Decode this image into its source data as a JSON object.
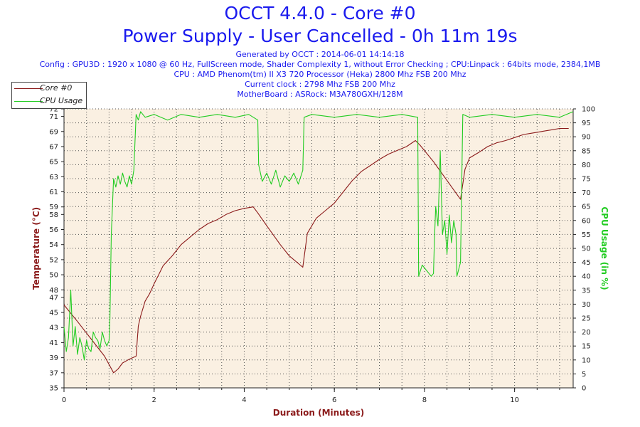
{
  "header": {
    "title": "OCCT 4.4.0 - Core #0",
    "subtitle": "Power Supply - User Cancelled - 0h 11m 19s",
    "generated": "Generated by OCCT : 2014-06-01 14:14:18",
    "config": "Config : GPU3D : 1920 x 1080 @ 60 Hz, FullScreen mode, Shader Complexity 1, without Error Checking ; CPU:Linpack : 64bits mode, 2384,1MB",
    "cpu": "CPU : AMD Phenom(tm) II X3 720 Processor (Heka) 2800 Mhz FSB 200 Mhz",
    "clock": "Current clock : 2798 Mhz FSB 200 Mhz",
    "motherboard": "MotherBoard : ASRock: M3A780GXH/128M"
  },
  "colors": {
    "temperature": "#8b1a1a",
    "cpu_usage": "#22cc22",
    "title": "#1a1aee",
    "plot_bg": "#faf0e2"
  },
  "chart_data": {
    "type": "line",
    "xlabel": "Duration (Minutes)",
    "ylabel_left": "Temperature (°C)",
    "ylabel_right": "CPU Usage (in %)",
    "xlim": [
      0,
      11.3
    ],
    "ylim_left": [
      35,
      72
    ],
    "ylim_right": [
      0,
      100
    ],
    "x_ticks": [
      0,
      2,
      4,
      6,
      8,
      10
    ],
    "y_ticks_left": [
      35,
      37,
      39,
      41,
      43,
      45,
      47,
      48,
      50,
      52,
      54,
      56,
      58,
      59,
      61,
      63,
      65,
      67,
      69,
      71,
      72
    ],
    "y_ticks_right": [
      0,
      5,
      10,
      15,
      20,
      25,
      30,
      35,
      40,
      45,
      50,
      55,
      60,
      65,
      70,
      75,
      80,
      85,
      90,
      95,
      100
    ],
    "grid": true,
    "legend_position": "top-left",
    "series": [
      {
        "name": "Core #0",
        "axis": "left",
        "x": [
          0,
          0.3,
          0.6,
          0.9,
          1.1,
          1.2,
          1.3,
          1.45,
          1.6,
          1.65,
          1.7,
          1.8,
          1.9,
          2.0,
          2.1,
          2.2,
          2.4,
          2.6,
          2.8,
          3.0,
          3.2,
          3.4,
          3.6,
          3.8,
          4.0,
          4.2,
          4.3,
          4.5,
          4.8,
          5.0,
          5.3,
          5.4,
          5.6,
          5.8,
          6.0,
          6.2,
          6.4,
          6.6,
          6.8,
          7.0,
          7.2,
          7.4,
          7.6,
          7.8,
          7.9,
          8.2,
          8.5,
          8.8,
          8.9,
          9.0,
          9.2,
          9.4,
          9.6,
          9.8,
          10.0,
          10.2,
          10.4,
          10.6,
          10.8,
          11.0,
          11.2
        ],
        "y": [
          46,
          43.8,
          41.5,
          39.2,
          37,
          37.5,
          38.3,
          38.8,
          39.2,
          43.2,
          44.5,
          46.5,
          47.5,
          48.8,
          50,
          51.2,
          52.5,
          54,
          55,
          56,
          56.8,
          57.3,
          58,
          58.5,
          58.8,
          59,
          58.2,
          56.5,
          54,
          52.5,
          51,
          55.5,
          57.5,
          58.5,
          59.5,
          61,
          62.5,
          63.7,
          64.5,
          65.3,
          66,
          66.5,
          67,
          67.8,
          67.2,
          65,
          62.5,
          60,
          64,
          65.5,
          66.2,
          67,
          67.5,
          67.8,
          68.2,
          68.6,
          68.8,
          69,
          69.2,
          69.4,
          69.4
        ]
      },
      {
        "name": "CPU Usage",
        "axis": "right",
        "x": [
          0,
          0.05,
          0.1,
          0.15,
          0.2,
          0.25,
          0.3,
          0.35,
          0.4,
          0.45,
          0.5,
          0.55,
          0.6,
          0.65,
          0.7,
          0.75,
          0.8,
          0.85,
          0.9,
          0.95,
          1.0,
          1.02,
          1.05,
          1.1,
          1.15,
          1.2,
          1.25,
          1.3,
          1.35,
          1.4,
          1.45,
          1.5,
          1.55,
          1.6,
          1.65,
          1.7,
          1.8,
          2.0,
          2.3,
          2.6,
          3.0,
          3.4,
          3.8,
          4.1,
          4.3,
          4.32,
          4.4,
          4.5,
          4.6,
          4.7,
          4.8,
          4.9,
          5.0,
          5.1,
          5.2,
          5.3,
          5.33,
          5.5,
          6.0,
          6.5,
          7.0,
          7.5,
          7.85,
          7.87,
          7.95,
          8.05,
          8.15,
          8.2,
          8.22,
          8.25,
          8.3,
          8.35,
          8.4,
          8.45,
          8.5,
          8.55,
          8.6,
          8.65,
          8.7,
          8.72,
          8.8,
          8.85,
          9.0,
          9.5,
          10.0,
          10.5,
          11.0,
          11.3
        ],
        "y": [
          22,
          13,
          18,
          35,
          15,
          22,
          12,
          18,
          15,
          10,
          17,
          14,
          13,
          20,
          18,
          17,
          14,
          20,
          17,
          15,
          17,
          25,
          55,
          75,
          72,
          76,
          73,
          77,
          74,
          72,
          76,
          73,
          78,
          98,
          96,
          99,
          97,
          98,
          96,
          98,
          97,
          98,
          97,
          98,
          96,
          80,
          74,
          77,
          73,
          78,
          72,
          76,
          74,
          77,
          73,
          78,
          97,
          98,
          97,
          98,
          97,
          98,
          97,
          40,
          44,
          42,
          40,
          41,
          52,
          65,
          58,
          85,
          55,
          60,
          48,
          62,
          52,
          60,
          55,
          40,
          45,
          98,
          97,
          98,
          97,
          98,
          97,
          99
        ]
      }
    ]
  }
}
